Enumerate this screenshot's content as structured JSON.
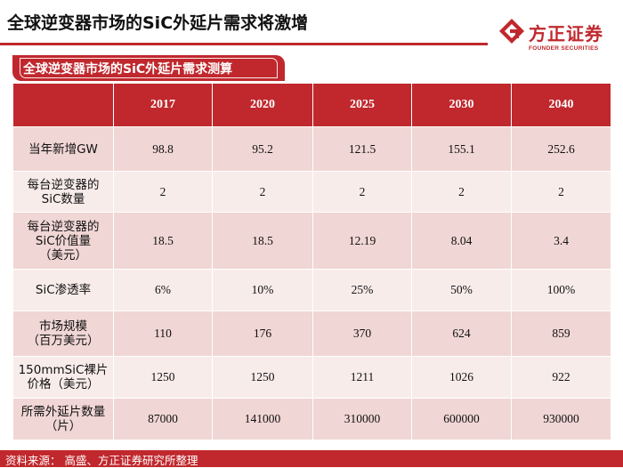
{
  "header": {
    "title": "全球逆变器市场的SiC外延片需求将激增",
    "logo_cn": "方正证券",
    "logo_en": "FOUNDER SECURITIES"
  },
  "subtitle": "全球逆变器市场的SiC外延片需求测算",
  "table": {
    "years": [
      "2017",
      "2020",
      "2025",
      "2030",
      "2040"
    ],
    "rows": [
      {
        "label_lines": [
          "当年新增GW"
        ],
        "values": [
          "98.8",
          "95.2",
          "121.5",
          "155.1",
          "252.6"
        ]
      },
      {
        "label_lines": [
          "每台逆变器的",
          "SiC数量"
        ],
        "values": [
          "2",
          "2",
          "2",
          "2",
          "2"
        ]
      },
      {
        "label_lines": [
          "每台逆变器的",
          "SiC价值量",
          "（美元）"
        ],
        "values": [
          "18.5",
          "18.5",
          "12.19",
          "8.04",
          "3.4"
        ]
      },
      {
        "label_lines": [
          "SiC渗透率"
        ],
        "values": [
          "6%",
          "10%",
          "25%",
          "50%",
          "100%"
        ]
      },
      {
        "label_lines": [
          "市场规模",
          "（百万美元）"
        ],
        "values": [
          "110",
          "176",
          "370",
          "624",
          "859"
        ]
      },
      {
        "label_lines": [
          "150mmSiC裸片",
          "价格（美元）"
        ],
        "values": [
          "1250",
          "1250",
          "1211",
          "1026",
          "922"
        ]
      },
      {
        "label_lines": [
          "所需外延片数量",
          "（片）"
        ],
        "values": [
          "87000",
          "141000",
          "310000",
          "600000",
          "930000"
        ]
      }
    ]
  },
  "footer": {
    "source": "资料来源： 高盛、方正证券研究所整理"
  },
  "colors": {
    "brand_red": "#c0282d",
    "row_dark": "#f0d6d4",
    "row_light": "#f8eceb"
  }
}
